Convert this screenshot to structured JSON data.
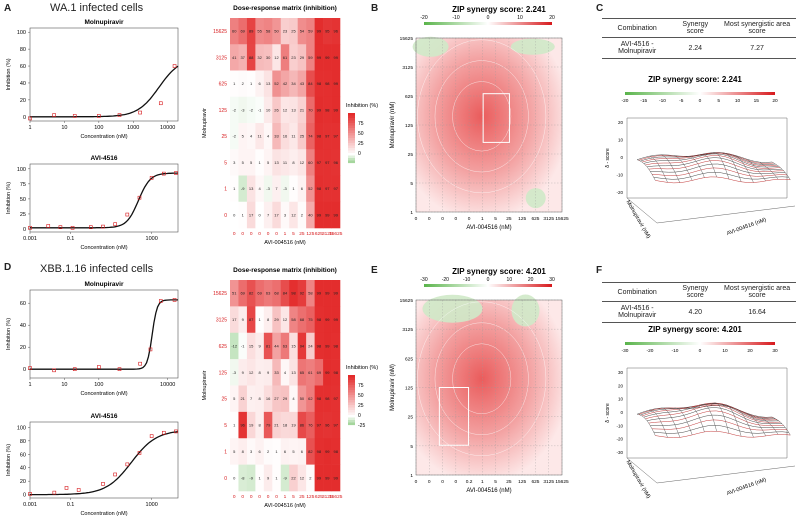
{
  "row1": {
    "panel_a": "A",
    "panel_b": "B",
    "panel_c": "C",
    "title": "WA.1 infected cells",
    "mol_curve": {
      "title": "Molnupiravir",
      "xlabel": "Concentration (nM)",
      "ylabel": "Inhibition (%)",
      "xticks": [
        "1",
        "10",
        "100",
        "1000",
        "10000"
      ],
      "yticks": [
        "0",
        "20",
        "40",
        "60",
        "80",
        "100"
      ],
      "xlog": [
        0,
        4.3
      ],
      "ylim": [
        -5,
        105
      ],
      "points": [
        [
          0,
          -2
        ],
        [
          0.7,
          2
        ],
        [
          1.3,
          1
        ],
        [
          2,
          1
        ],
        [
          2.6,
          2
        ],
        [
          3.2,
          5
        ],
        [
          3.8,
          16
        ],
        [
          4.2,
          60
        ]
      ],
      "curve": {
        "bottom": 0,
        "top": 70,
        "ec50_log": 3.75,
        "hill": 1.4
      }
    },
    "avi_curve": {
      "title": "AVI-4516",
      "xlabel": "Concentration (nM)",
      "ylabel": "Inhibition (%)",
      "xticks": [
        "0.001",
        "0.1",
        "1000"
      ],
      "yticks": [
        "0",
        "25",
        "50",
        "75",
        "100"
      ],
      "xlog": [
        -3,
        4.3
      ],
      "ylim": [
        -5,
        108
      ],
      "points": [
        [
          -3,
          2
        ],
        [
          -2.1,
          5
        ],
        [
          -1.5,
          3
        ],
        [
          -0.9,
          2
        ],
        [
          0,
          3
        ],
        [
          0.6,
          4
        ],
        [
          1.2,
          8
        ],
        [
          1.8,
          24
        ],
        [
          2.4,
          52
        ],
        [
          3,
          85
        ],
        [
          3.6,
          92
        ],
        [
          4.2,
          93
        ]
      ],
      "curve": {
        "bottom": 2,
        "top": 93,
        "ec50_log": 2.35,
        "hill": 1.5
      }
    },
    "matrix": {
      "title": "Dose-response matrix (inhibition)",
      "xlabel": "AVI-004516 (nM)",
      "ylabel": "Molnupiravir",
      "x": [
        "0",
        "0",
        "0",
        "0",
        "0",
        "0",
        "1",
        "5",
        "25",
        "125",
        "625",
        "3125",
        "15625"
      ],
      "y": [
        "15625",
        "3125",
        "625",
        "125",
        "25",
        "5",
        "1",
        "0"
      ],
      "legend_title": "Inhibition (%)",
      "legend_ticks": [
        "75",
        "50",
        "25",
        "0"
      ],
      "values": [
        [
          60,
          69,
          89,
          55,
          58,
          50,
          23,
          25,
          54,
          59,
          99,
          95,
          96
        ],
        [
          41,
          37,
          88,
          32,
          30,
          12,
          61,
          23,
          29,
          59,
          99,
          99,
          99
        ],
        [
          1,
          2,
          1,
          6,
          13,
          52,
          42,
          34,
          43,
          84,
          98,
          98,
          99
        ],
        [
          -2,
          -3,
          -2,
          -1,
          10,
          26,
          12,
          13,
          21,
          70,
          99,
          98,
          99
        ],
        [
          -2,
          5,
          4,
          11,
          4,
          33,
          16,
          11,
          25,
          74,
          98,
          97,
          97
        ],
        [
          3,
          5,
          5,
          1,
          5,
          13,
          11,
          8,
          12,
          60,
          97,
          97,
          96
        ],
        [
          1,
          -9,
          13,
          4,
          -3,
          7,
          -3,
          1,
          6,
          52,
          98,
          97,
          97
        ],
        [
          0,
          1,
          17,
          0,
          7,
          17,
          3,
          12,
          2,
          40,
          99,
          99,
          99
        ]
      ]
    },
    "syn_map": {
      "title": "ZIP synergy score: 2.241",
      "xlabel": "AVI-004516 (nM)",
      "ylabel": "Molnupiravir (nM)",
      "xticks": [
        "0",
        "0",
        "0",
        "0",
        "0",
        "1",
        "5",
        "25",
        "125",
        "625",
        "3125",
        "15625"
      ],
      "yticks": [
        "1",
        "5",
        "25",
        "125",
        "625",
        "3125",
        "15625"
      ],
      "scale_ticks": [
        "-20",
        "-10",
        "0",
        "10",
        "20"
      ]
    },
    "table": {
      "headers": [
        "Combination",
        "Synergy score",
        "Most synergistic area score"
      ],
      "row": [
        "AVI-4516 - Molnupiravir",
        "2.24",
        "7.27"
      ]
    },
    "syn_3d": {
      "title": "ZIP synergy score: 2.241",
      "scale_ticks": [
        "-20",
        "-15",
        "-10",
        "-5",
        "0",
        "5",
        "10",
        "15",
        "20"
      ],
      "zlabel": "δ - score",
      "xlabel": "AVI-004516 (nM)",
      "ylabel": "Molnupiravir (nM)",
      "zticks": [
        "20",
        "10",
        "0",
        "-10",
        "-20"
      ]
    }
  },
  "row2": {
    "panel_d": "D",
    "panel_e": "E",
    "panel_f": "F",
    "title": "XBB.1.16 infected cells",
    "mol_curve": {
      "title": "Molnupiravir",
      "xlabel": "Concentration (nM)",
      "ylabel": "Inhibition (%)",
      "xticks": [
        "1",
        "10",
        "100",
        "10000"
      ],
      "yticks": [
        "0",
        "20",
        "40",
        "60"
      ],
      "xlog": [
        0,
        4.3
      ],
      "ylim": [
        -8,
        72
      ],
      "points": [
        [
          0,
          1
        ],
        [
          0.7,
          -1
        ],
        [
          1.3,
          0
        ],
        [
          2,
          2
        ],
        [
          2.6,
          0
        ],
        [
          3.2,
          5
        ],
        [
          3.5,
          18
        ],
        [
          3.8,
          62
        ],
        [
          4.2,
          63
        ]
      ],
      "curve": {
        "bottom": 0,
        "top": 63,
        "ec50_log": 3.55,
        "hill": 6
      }
    },
    "avi_curve": {
      "title": "AVI-4516",
      "xlabel": "Concentration (nM)",
      "ylabel": "Inhibition (%)",
      "xticks": [
        "0.001",
        "0.1",
        "1000"
      ],
      "yticks": [
        "0",
        "20",
        "40",
        "60",
        "80",
        "100"
      ],
      "xlog": [
        -3,
        4.3
      ],
      "ylim": [
        -5,
        108
      ],
      "points": [
        [
          -3,
          1
        ],
        [
          -1.8,
          3
        ],
        [
          -1.2,
          10
        ],
        [
          -0.6,
          7
        ],
        [
          0.6,
          16
        ],
        [
          1.2,
          30
        ],
        [
          1.8,
          45
        ],
        [
          2.4,
          62
        ],
        [
          3,
          87
        ],
        [
          3.6,
          92
        ],
        [
          4.2,
          94
        ]
      ],
      "curve": {
        "bottom": 0,
        "top": 96,
        "ec50_log": 2.0,
        "hill": 0.7
      }
    },
    "matrix": {
      "title": "Dose-response matrix (inhibition)",
      "xlabel": "AVI-004516 (nM)",
      "ylabel": "Molnupiravir",
      "x": [
        "0",
        "0",
        "0",
        "0",
        "0",
        "0",
        "1",
        "5",
        "25",
        "125",
        "625",
        "3125",
        "15625"
      ],
      "y": [
        "15625",
        "3125",
        "625",
        "125",
        "25",
        "5",
        "1",
        "0"
      ],
      "legend_title": "Inhibition (%)",
      "legend_ticks": [
        "75",
        "50",
        "25",
        "0",
        "-25"
      ],
      "values": [
        [
          51,
          69,
          82,
          69,
          63,
          68,
          84,
          98,
          92,
          58,
          99,
          99,
          99
        ],
        [
          17,
          9,
          87,
          1,
          8,
          29,
          12,
          58,
          68,
          75,
          98,
          99,
          99
        ],
        [
          -12,
          -1,
          15,
          9,
          81,
          44,
          63,
          15,
          94,
          24,
          98,
          99,
          98
        ],
        [
          -3,
          9,
          12,
          8,
          9,
          33,
          4,
          13,
          65,
          61,
          69,
          99,
          98
        ],
        [
          5,
          21,
          7,
          8,
          16,
          27,
          29,
          4,
          50,
          62,
          98,
          98,
          97
        ],
        [
          1,
          96,
          19,
          8,
          79,
          21,
          18,
          19,
          86,
          76,
          97,
          96,
          97
        ],
        [
          5,
          8,
          3,
          6,
          2,
          1,
          6,
          5,
          6,
          82,
          98,
          99,
          98
        ],
        [
          0,
          -8,
          -9,
          1,
          9,
          1,
          -9,
          22,
          12,
          2,
          99,
          99,
          99
        ]
      ]
    },
    "syn_map": {
      "title": "ZIP synergy score: 4.201",
      "xlabel": "AVI-004516 (nM)",
      "ylabel": "Molnupiravir (nM)",
      "xticks": [
        "0",
        "0",
        "0",
        "0",
        "0.2",
        "1",
        "5",
        "25",
        "125",
        "625",
        "3125",
        "15625"
      ],
      "yticks": [
        "1",
        "5",
        "25",
        "125",
        "625",
        "3125",
        "15625"
      ],
      "scale_ticks": [
        "-30",
        "-20",
        "-10",
        "0",
        "10",
        "20",
        "30"
      ]
    },
    "table": {
      "headers": [
        "Combination",
        "Synergy score",
        "Most synergistic area score"
      ],
      "row": [
        "AVI-4516 - Molnupiravir",
        "4.20",
        "16.64"
      ]
    },
    "syn_3d": {
      "title": "ZIP synergy score: 4.201",
      "scale_ticks": [
        "-30",
        "-20",
        "-10",
        "0",
        "10",
        "20",
        "30"
      ],
      "zlabel": "δ - score",
      "xlabel": "AVI-004516 (nM)",
      "ylabel": "Molnupiravir (nM)",
      "zticks": [
        "30",
        "20",
        "10",
        "0",
        "-10",
        "-20",
        "-30"
      ]
    }
  },
  "colors": {
    "red": "#d7191c",
    "green": "#5ab44b",
    "frame": "#444444",
    "grid": "#e5e5e5"
  }
}
